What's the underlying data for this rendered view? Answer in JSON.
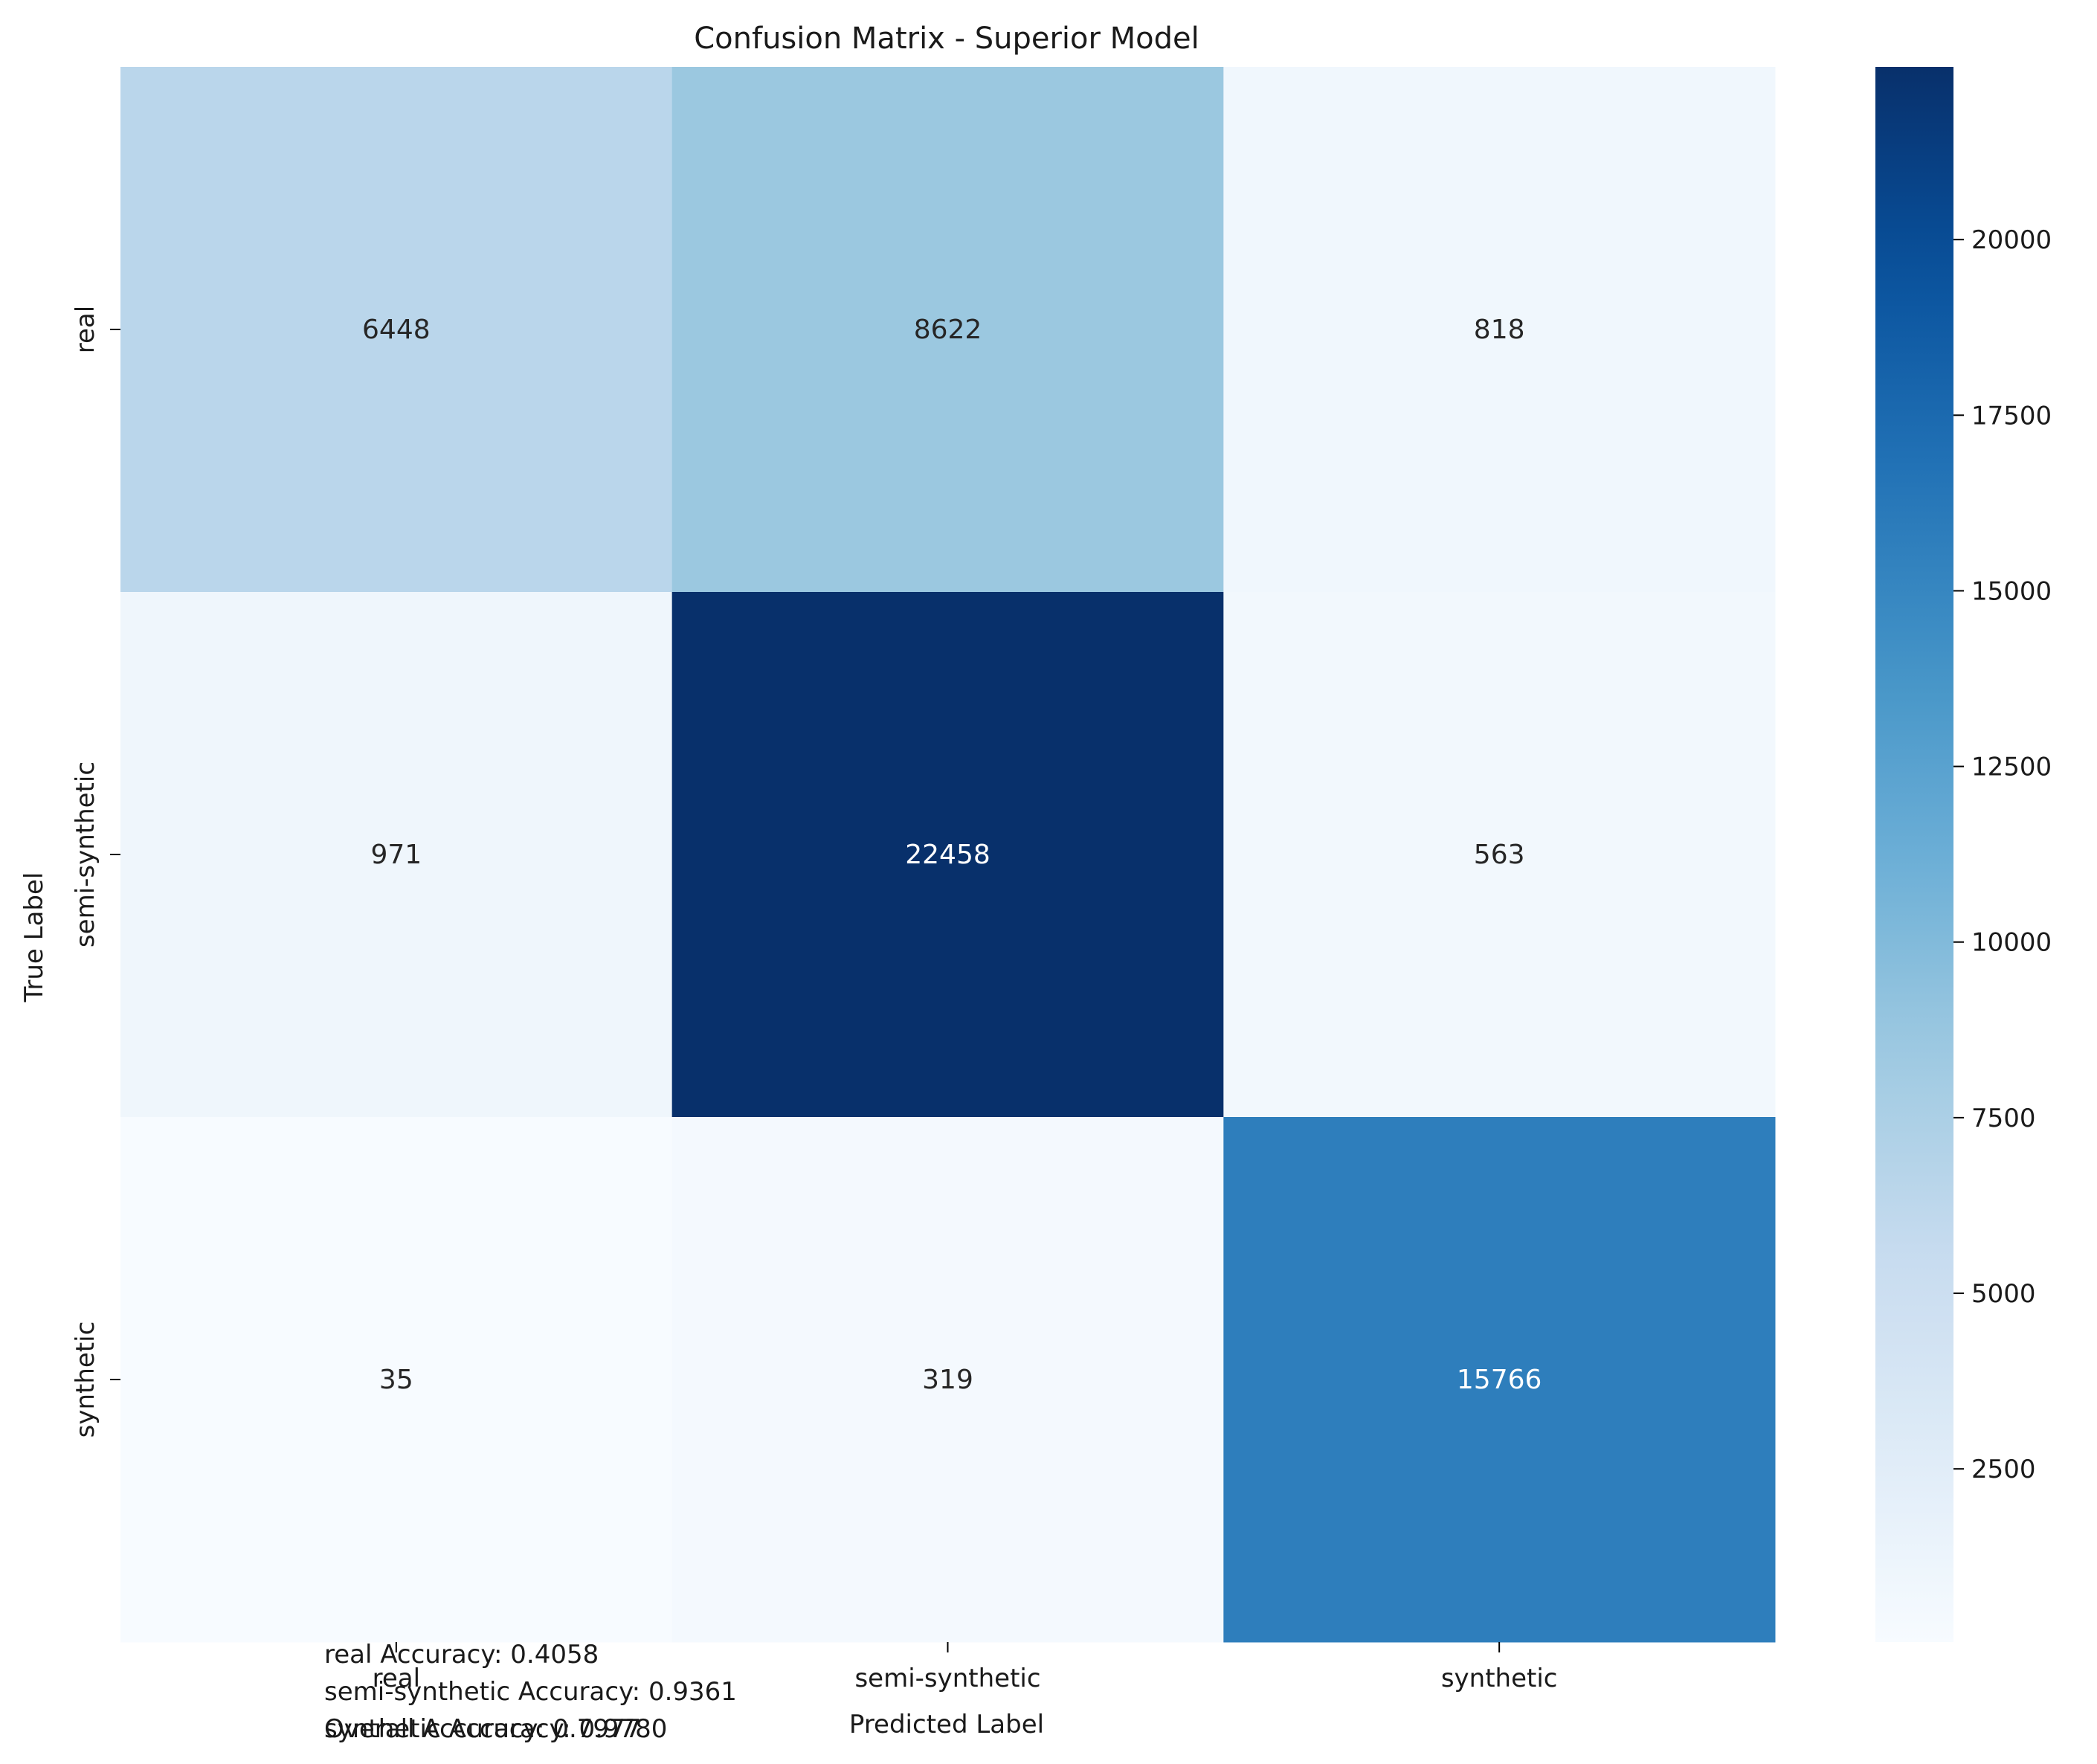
{
  "chart_data": {
    "type": "heatmap",
    "title": "Confusion Matrix - Superior Model",
    "xlabel": "Predicted Label",
    "ylabel": "True Label",
    "x_categories": [
      "real",
      "semi-synthetic",
      "synthetic"
    ],
    "y_categories": [
      "real",
      "semi-synthetic",
      "synthetic"
    ],
    "values": [
      [
        6448,
        8622,
        818
      ],
      [
        971,
        22458,
        563
      ],
      [
        35,
        319,
        15766
      ]
    ],
    "colormap": "Blues",
    "colorbar": {
      "min": 35,
      "max": 22458,
      "ticks": [
        2500,
        5000,
        7500,
        10000,
        12500,
        15000,
        17500,
        20000
      ]
    },
    "annotations": [
      "real Accuracy: 0.4058",
      "semi-synthetic Accuracy: 0.9361",
      "synthetic Accuracy: 0.9780",
      "Overall Accuracy: 0.7977"
    ],
    "grid": false
  }
}
